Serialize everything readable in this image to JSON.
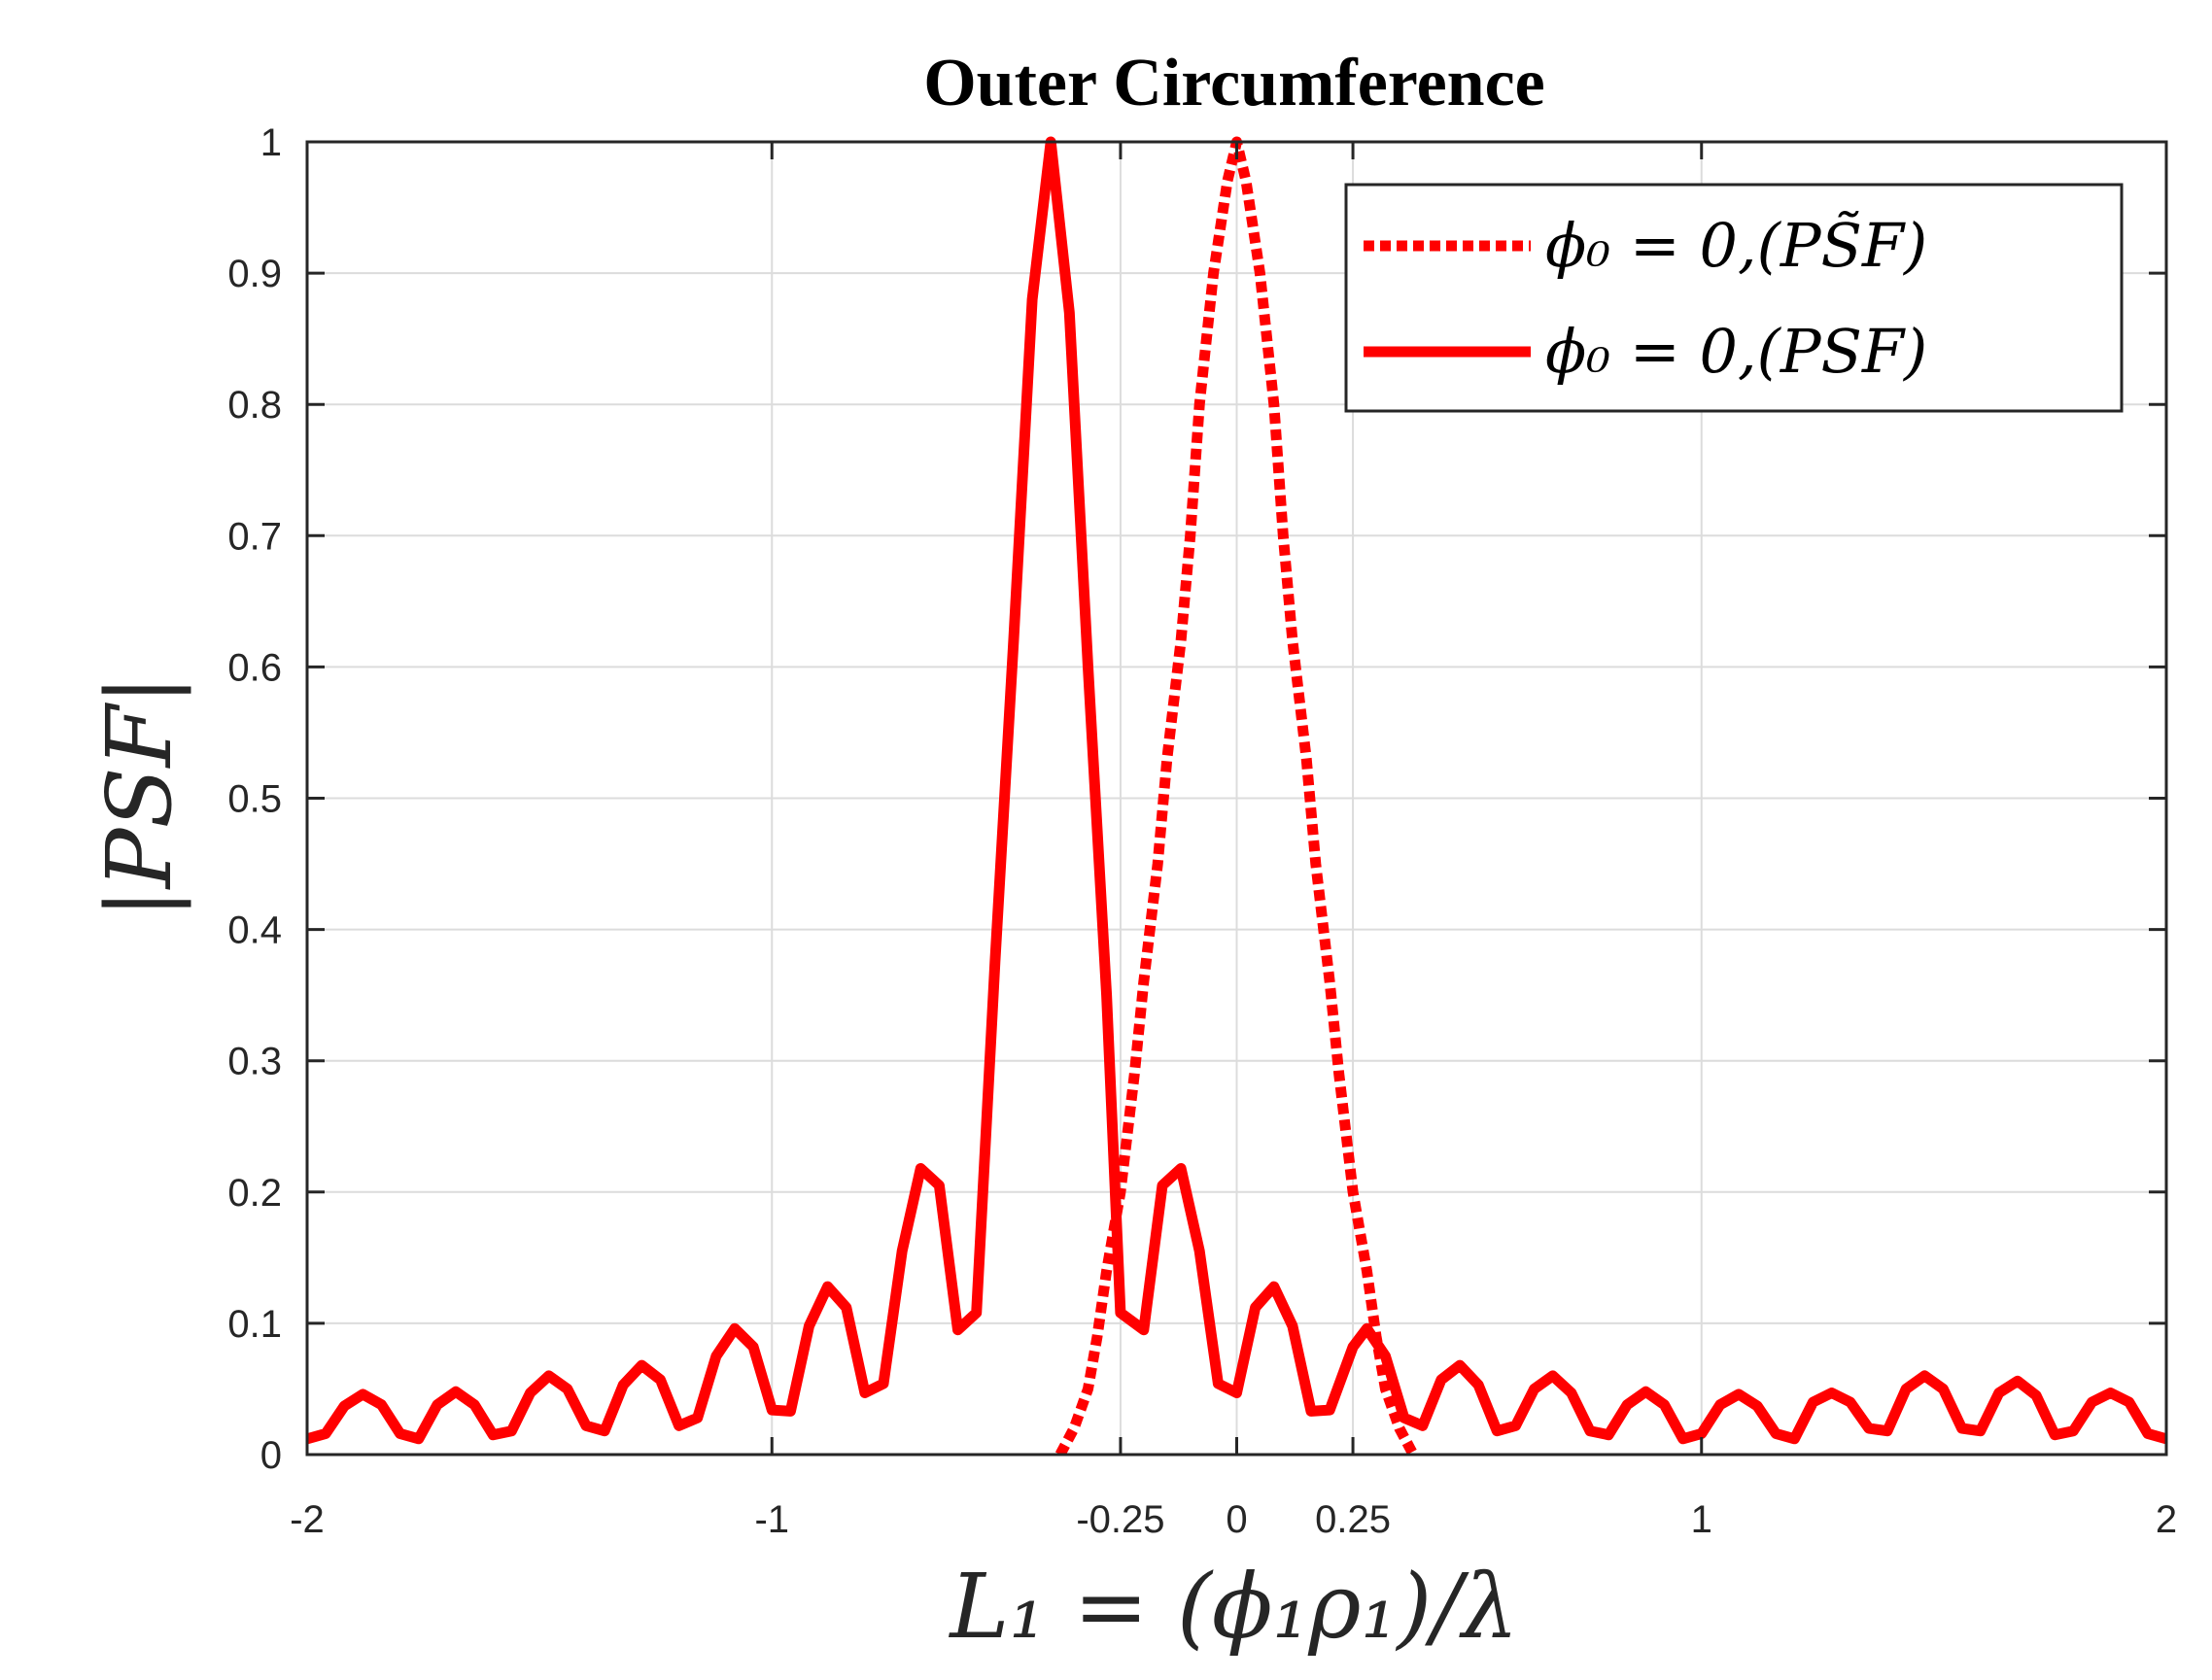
{
  "chart_data": {
    "type": "line",
    "title": "Outer Circumference",
    "xlabel": "L₁ = (ϕ₁ρ₁)/λ",
    "ylabel": "|PSF|",
    "xlim": [
      -2,
      2
    ],
    "ylim": [
      0,
      1
    ],
    "grid": true,
    "legend_position": "top-right",
    "x_ticks": [
      {
        "value": -2,
        "label": "-2"
      },
      {
        "value": -1,
        "label": "-1"
      },
      {
        "value": -0.25,
        "label": "-0.25"
      },
      {
        "value": 0,
        "label": "0"
      },
      {
        "value": 0.25,
        "label": "0.25"
      },
      {
        "value": 1,
        "label": "1"
      },
      {
        "value": 2,
        "label": "2"
      }
    ],
    "y_ticks": [
      {
        "value": 0,
        "label": "0"
      },
      {
        "value": 0.1,
        "label": "0.1"
      },
      {
        "value": 0.2,
        "label": "0.2"
      },
      {
        "value": 0.3,
        "label": "0.3"
      },
      {
        "value": 0.4,
        "label": "0.4"
      },
      {
        "value": 0.5,
        "label": "0.5"
      },
      {
        "value": 0.6,
        "label": "0.6"
      },
      {
        "value": 0.7,
        "label": "0.7"
      },
      {
        "value": 0.8,
        "label": "0.8"
      },
      {
        "value": 0.9,
        "label": "0.9"
      },
      {
        "value": 1,
        "label": "1"
      }
    ],
    "series": [
      {
        "name": "ϕ₀ = 0,(PS̃F)",
        "style": "dotted",
        "color": "#ff0000",
        "x": [
          -0.38,
          -0.35,
          -0.32,
          -0.3,
          -0.28,
          -0.25,
          -0.22,
          -0.2,
          -0.17,
          -0.15,
          -0.12,
          -0.1,
          -0.08,
          -0.05,
          -0.02,
          0,
          0.02,
          0.05,
          0.08,
          0.1,
          0.12,
          0.15,
          0.17,
          0.2,
          0.22,
          0.25,
          0.28,
          0.3,
          0.32,
          0.35,
          0.38
        ],
        "y": [
          0.0,
          0.02,
          0.05,
          0.09,
          0.14,
          0.2,
          0.29,
          0.36,
          0.45,
          0.53,
          0.62,
          0.7,
          0.8,
          0.9,
          0.97,
          1.0,
          0.97,
          0.9,
          0.8,
          0.7,
          0.62,
          0.53,
          0.45,
          0.36,
          0.29,
          0.2,
          0.14,
          0.09,
          0.05,
          0.02,
          0.0
        ]
      },
      {
        "name": "ϕ₀ = 0,(PSF)",
        "style": "solid",
        "color": "#ff0000",
        "x": [
          -2.0,
          -1.96,
          -1.92,
          -1.88,
          -1.84,
          -1.8,
          -1.76,
          -1.72,
          -1.68,
          -1.64,
          -1.6,
          -1.56,
          -1.52,
          -1.48,
          -1.44,
          -1.4,
          -1.36,
          -1.32,
          -1.28,
          -1.24,
          -1.2,
          -1.16,
          -1.12,
          -1.08,
          -1.04,
          -1.0,
          -0.96,
          -0.92,
          -0.88,
          -0.84,
          -0.8,
          -0.76,
          -0.72,
          -0.68,
          -0.64,
          -0.6,
          -0.56,
          -0.52,
          -0.48,
          -0.44,
          -0.4,
          -0.36,
          -0.32,
          -0.28,
          -0.25,
          -0.2,
          -0.16,
          -0.12,
          -0.08,
          -0.04,
          0.0,
          0.04,
          0.08,
          0.12,
          0.16,
          0.2,
          0.25,
          0.28,
          0.32,
          0.36,
          0.4,
          0.44,
          0.48,
          0.52,
          0.56,
          0.6,
          0.64,
          0.68,
          0.72,
          0.76,
          0.8,
          0.84,
          0.88,
          0.92,
          0.96,
          1.0,
          1.04,
          1.08,
          1.12,
          1.16,
          1.2,
          1.24,
          1.28,
          1.32,
          1.36,
          1.4,
          1.44,
          1.48,
          1.52,
          1.56,
          1.6,
          1.64,
          1.68,
          1.72,
          1.76,
          1.8,
          1.84,
          1.88,
          1.92,
          1.96,
          2.0
        ],
        "y": [
          0.012,
          0.016,
          0.037,
          0.046,
          0.038,
          0.016,
          0.012,
          0.038,
          0.048,
          0.038,
          0.015,
          0.018,
          0.047,
          0.06,
          0.05,
          0.022,
          0.018,
          0.053,
          0.068,
          0.057,
          0.022,
          0.028,
          0.075,
          0.096,
          0.082,
          0.034,
          0.033,
          0.098,
          0.128,
          0.112,
          0.047,
          0.054,
          0.155,
          0.218,
          0.205,
          0.095,
          0.108,
          0.375,
          0.62,
          0.88,
          1.0,
          0.87,
          0.6,
          0.35,
          0.108,
          0.095,
          0.205,
          0.218,
          0.155,
          0.054,
          0.047,
          0.112,
          0.128,
          0.098,
          0.033,
          0.034,
          0.082,
          0.096,
          0.075,
          0.028,
          0.022,
          0.057,
          0.068,
          0.053,
          0.018,
          0.022,
          0.05,
          0.06,
          0.047,
          0.018,
          0.015,
          0.038,
          0.048,
          0.038,
          0.012,
          0.016,
          0.038,
          0.046,
          0.037,
          0.016,
          0.012,
          0.04,
          0.047,
          0.04,
          0.02,
          0.018,
          0.05,
          0.06,
          0.05,
          0.02,
          0.018,
          0.047,
          0.056,
          0.045,
          0.015,
          0.018,
          0.04,
          0.047,
          0.04,
          0.016,
          0.012
        ]
      }
    ]
  }
}
